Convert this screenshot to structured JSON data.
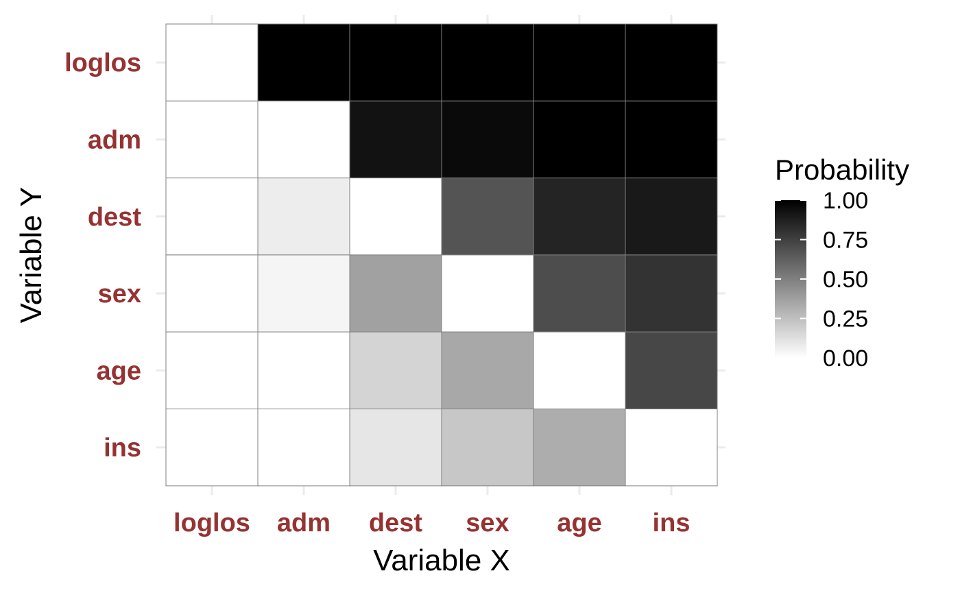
{
  "chart_data": {
    "type": "heatmap",
    "title": "",
    "xlabel": "Variable X",
    "ylabel": "Variable Y",
    "x_categories": [
      "loglos",
      "adm",
      "dest",
      "sex",
      "age",
      "ins"
    ],
    "y_categories": [
      "loglos",
      "adm",
      "dest",
      "sex",
      "age",
      "ins"
    ],
    "values": [
      [
        0.0,
        1.0,
        1.0,
        1.0,
        1.0,
        1.0
      ],
      [
        0.0,
        0.0,
        0.93,
        0.96,
        1.0,
        1.0
      ],
      [
        0.0,
        0.07,
        0.0,
        0.67,
        0.86,
        0.9
      ],
      [
        0.0,
        0.04,
        0.37,
        0.0,
        0.7,
        0.8
      ],
      [
        0.0,
        0.0,
        0.17,
        0.34,
        0.0,
        0.72
      ],
      [
        0.0,
        0.0,
        0.1,
        0.22,
        0.32,
        0.0
      ]
    ],
    "value_range": [
      0,
      1
    ],
    "grid": true,
    "legend": {
      "title": "Probability",
      "placement": "right",
      "ticks": [
        1.0,
        0.75,
        0.5,
        0.25,
        0.0
      ],
      "tick_labels": [
        "1.00",
        "0.75",
        "0.50",
        "0.25",
        "0.00"
      ]
    },
    "colors": {
      "low": "#ffffff",
      "high": "#000000",
      "tick_label": "#963232",
      "cell_border": "#808080",
      "grid": "#ebebeb"
    }
  }
}
